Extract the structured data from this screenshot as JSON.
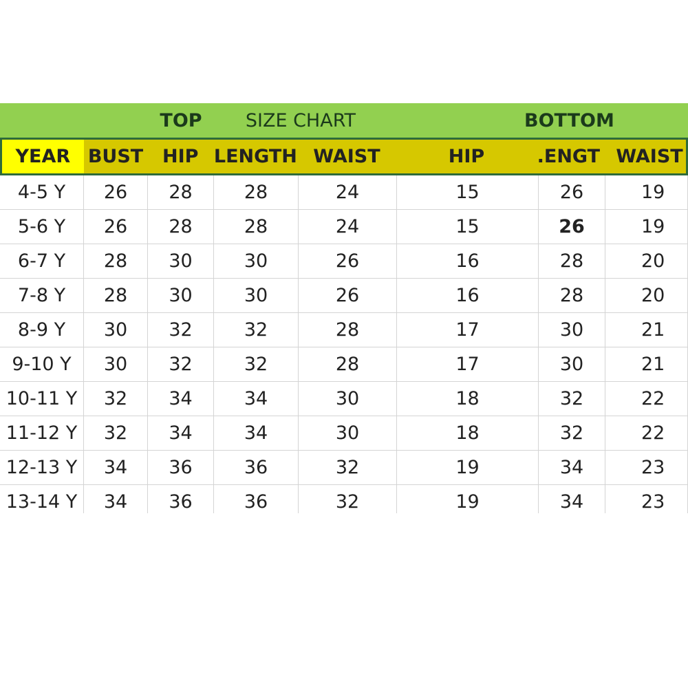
{
  "title_row": {
    "top": "TOP",
    "center": "SIZE CHART",
    "bottom": "BOTTOM"
  },
  "columns": [
    "YEAR",
    "BUST",
    "HIP",
    "LENGTH",
    "WAIST",
    "HIP",
    ".ENGT",
    "WAIST"
  ],
  "rows": [
    [
      "4-5 Y",
      "26",
      "28",
      "28",
      "24",
      "15",
      "26",
      "19"
    ],
    [
      "5-6 Y",
      "26",
      "28",
      "28",
      "24",
      "15",
      "26",
      "19"
    ],
    [
      "6-7 Y",
      "28",
      "30",
      "30",
      "26",
      "16",
      "28",
      "20"
    ],
    [
      "7-8 Y",
      "28",
      "30",
      "30",
      "26",
      "16",
      "28",
      "20"
    ],
    [
      "8-9 Y",
      "30",
      "32",
      "32",
      "28",
      "17",
      "30",
      "21"
    ],
    [
      "9-10 Y",
      "30",
      "32",
      "32",
      "28",
      "17",
      "30",
      "21"
    ],
    [
      "10-11 Y",
      "32",
      "34",
      "34",
      "30",
      "18",
      "32",
      "22"
    ],
    [
      "11-12 Y",
      "32",
      "34",
      "34",
      "30",
      "18",
      "32",
      "22"
    ],
    [
      "12-13 Y",
      "34",
      "36",
      "36",
      "32",
      "19",
      "34",
      "23"
    ],
    [
      "13-14 Y",
      "34",
      "36",
      "36",
      "32",
      "19",
      "34",
      "23"
    ]
  ],
  "colors": {
    "title_green": "#92d050",
    "header_olive": "#d6c800",
    "year_yellow": "#ffff00",
    "border_green": "#2e6b3a"
  }
}
